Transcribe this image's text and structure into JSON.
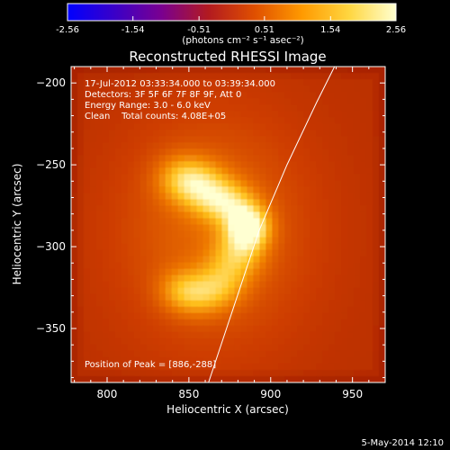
{
  "colorbar": {
    "ticks": [
      "-2.56",
      "-1.54",
      "-0.51",
      "0.51",
      "1.54",
      "2.56"
    ],
    "tick_values": [
      -2.56,
      -1.54,
      -0.51,
      0.51,
      1.54,
      2.56
    ],
    "range": [
      -2.56,
      2.56
    ],
    "units": "(photons cm⁻² s⁻¹ asec⁻²)",
    "colormap": [
      "#0000ff",
      "#3a00c8",
      "#7a0090",
      "#b21a20",
      "#e05000",
      "#ff9a00",
      "#ffd640",
      "#ffffd0"
    ]
  },
  "chart_data": {
    "type": "heatmap",
    "title": "Reconstructed RHESSI Image",
    "xlabel": "Heliocentric X (arcsec)",
    "ylabel": "Heliocentric Y (arcsec)",
    "xlim": [
      778,
      970
    ],
    "ylim": [
      -383,
      -190
    ],
    "x_ticks": [
      800,
      850,
      900,
      950
    ],
    "x_tick_labels": [
      "800",
      "850",
      "900",
      "950"
    ],
    "y_ticks": [
      -200,
      -250,
      -300,
      -350
    ],
    "y_tick_labels": [
      "−200",
      "−250",
      "−300",
      "−350"
    ],
    "background_color": "#9e1c00",
    "annotations": [
      "17-Jul-2012 03:33:34.000 to 03:39:34.000",
      "Detectors: 3F 5F 6F 7F 8F 9F, Att 0",
      "Energy Range: 3.0 - 6.0 keV",
      "Clean    Total counts: 4.08E+05"
    ],
    "peak_label": "Position of Peak = [886,-288]",
    "peak": [
      886,
      -288
    ],
    "sources": [
      {
        "x": 886,
        "y": -288,
        "sx": 9,
        "sy": 9,
        "amp": 1.0
      },
      {
        "x": 872,
        "y": -273,
        "sx": 12,
        "sy": 9,
        "amp": 0.6
      },
      {
        "x": 857,
        "y": -262,
        "sx": 12,
        "sy": 10,
        "amp": 0.5
      },
      {
        "x": 845,
        "y": -258,
        "sx": 11,
        "sy": 10,
        "amp": 0.38
      },
      {
        "x": 880,
        "y": -305,
        "sx": 11,
        "sy": 10,
        "amp": 0.45
      },
      {
        "x": 870,
        "y": -322,
        "sx": 11,
        "sy": 10,
        "amp": 0.38
      },
      {
        "x": 856,
        "y": -330,
        "sx": 12,
        "sy": 9,
        "amp": 0.38
      },
      {
        "x": 845,
        "y": -326,
        "sx": 10,
        "sy": 9,
        "amp": 0.3
      }
    ],
    "limb": [
      [
        862,
        -383
      ],
      [
        878,
        -335
      ],
      [
        893,
        -290
      ],
      [
        910,
        -250
      ],
      [
        928,
        -212
      ],
      [
        939,
        -190
      ]
    ]
  },
  "footer": {
    "date": "5-May-2014 12:10"
  }
}
